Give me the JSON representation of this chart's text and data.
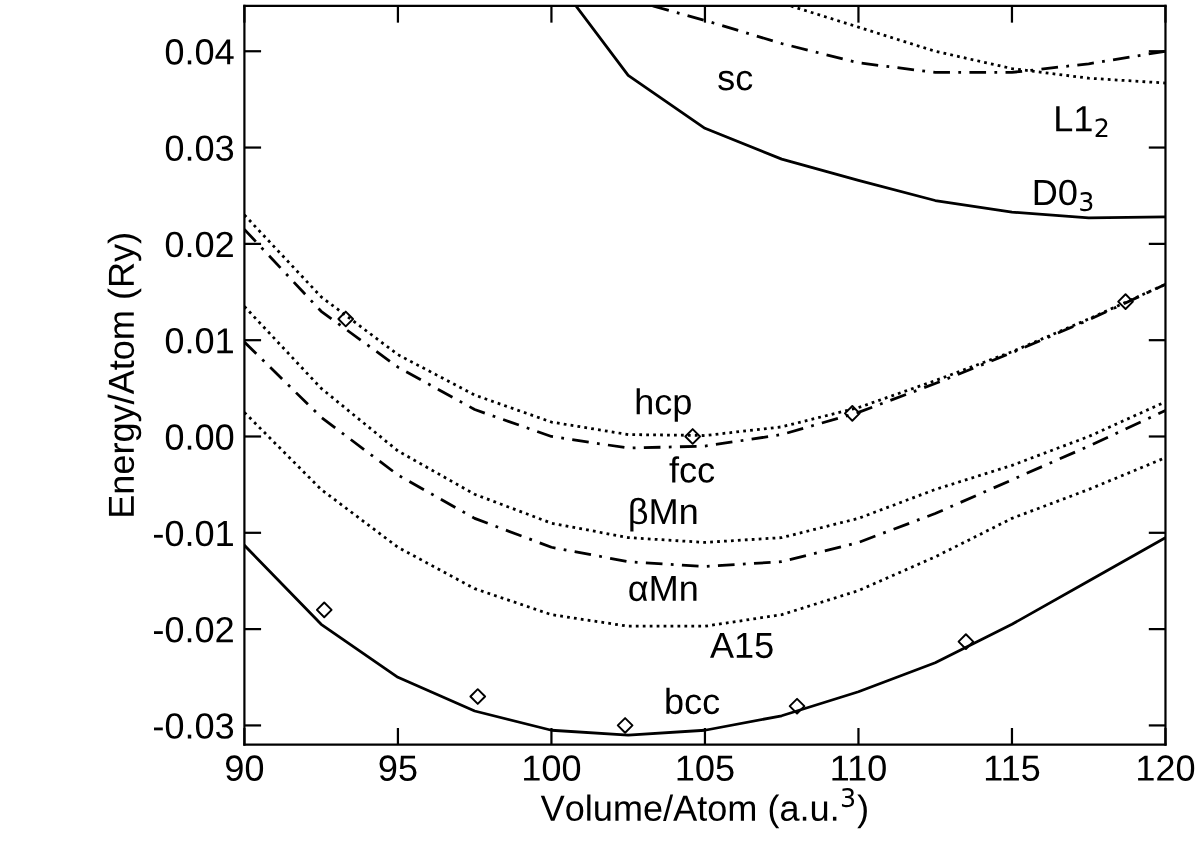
{
  "chart_data": {
    "type": "line",
    "xlabel": "Volume/Atom (a.u.$^{3}$)",
    "ylabel": "Energy/Atom (Ry)",
    "xlim": [
      90,
      120
    ],
    "ylim": [
      -0.032,
      0.0447
    ],
    "xticks": [
      90,
      95,
      100,
      105,
      110,
      115,
      120
    ],
    "yticks": [
      -0.03,
      -0.02,
      -0.01,
      {
        "value": 0,
        "label": "0.00"
      },
      0.01,
      0.02,
      0.03,
      0.04
    ],
    "grid": false,
    "series": [
      {
        "name": "hcp",
        "color": "#000000",
        "line_style": "dotted",
        "marker": "none",
        "x": [
          90,
          92.5,
          95,
          97.5,
          100,
          102.5,
          105,
          107.5,
          110,
          112.5,
          115,
          117.5,
          120
        ],
        "values": [
          0.023,
          0.0145,
          0.0085,
          0.0043,
          0.0015,
          0.0002,
          0.0001,
          0.001,
          0.003,
          0.0058,
          0.0088,
          0.0122,
          0.0158
        ]
      },
      {
        "name": "fcc",
        "color": "#000000",
        "line_style": "dashed",
        "marker": "none",
        "x": [
          90,
          92.5,
          95,
          97.5,
          100,
          102.5,
          105,
          107.5,
          110,
          112.5,
          115,
          117.5,
          120
        ],
        "values": [
          0.0215,
          0.013,
          0.0072,
          0.0028,
          0.0,
          -0.0012,
          -0.001,
          0.0002,
          0.0025,
          0.0055,
          0.0087,
          0.0121,
          0.0158
        ]
      },
      {
        "name": "βMn",
        "color": "#000000",
        "line_style": "dotted",
        "marker": "none",
        "x": [
          90,
          92.5,
          95,
          97.5,
          100,
          102.5,
          105,
          107.5,
          110,
          112.5,
          115,
          117.5,
          120
        ],
        "values": [
          0.0135,
          0.005,
          -0.0015,
          -0.006,
          -0.009,
          -0.0105,
          -0.011,
          -0.0105,
          -0.0085,
          -0.0055,
          -0.003,
          0.0,
          0.0036
        ]
      },
      {
        "name": "αMn",
        "color": "#000000",
        "line_style": "dashed",
        "marker": "none",
        "x": [
          90,
          92.5,
          95,
          97.5,
          100,
          102.5,
          105,
          107.5,
          110,
          112.5,
          115,
          117.5,
          120
        ],
        "values": [
          0.0098,
          0.002,
          -0.004,
          -0.0085,
          -0.0115,
          -0.013,
          -0.0135,
          -0.013,
          -0.011,
          -0.008,
          -0.0045,
          -0.001,
          0.0027
        ]
      },
      {
        "name": "A15",
        "color": "#000000",
        "line_style": "dotted",
        "marker": "none",
        "x": [
          90,
          92.5,
          95,
          97.5,
          100,
          102.5,
          105,
          107.5,
          110,
          112.5,
          115,
          117.5,
          120
        ],
        "values": [
          0.0025,
          -0.0055,
          -0.0115,
          -0.0158,
          -0.0185,
          -0.0197,
          -0.0197,
          -0.0185,
          -0.016,
          -0.0125,
          -0.0085,
          -0.0055,
          -0.0022
        ]
      },
      {
        "name": "bcc",
        "color": "#000000",
        "line_style": "solid",
        "marker": "none",
        "x": [
          90,
          92.5,
          95,
          97.5,
          100,
          102.5,
          105,
          107.5,
          110,
          112.5,
          115,
          117.5,
          120
        ],
        "values": [
          -0.0113,
          -0.0195,
          -0.025,
          -0.0285,
          -0.0305,
          -0.031,
          -0.0305,
          -0.029,
          -0.0265,
          -0.0235,
          -0.0195,
          -0.015,
          -0.0105
        ]
      },
      {
        "name": "D0$_{3}$",
        "color": "#000000",
        "line_style": "solid",
        "marker": "none",
        "x": [
          100.8,
          102.5,
          105,
          107.5,
          110,
          112.5,
          115,
          117.5,
          120
        ],
        "values": [
          0.0447,
          0.0375,
          0.032,
          0.0288,
          0.0266,
          0.0245,
          0.0233,
          0.0227,
          0.0228
        ]
      },
      {
        "name": "sc",
        "color": "#000000",
        "line_style": "dashed",
        "marker": "none",
        "x": [
          103.3,
          105,
          107.5,
          110,
          112.5,
          115,
          117.5,
          120
        ],
        "values": [
          0.0447,
          0.0432,
          0.0408,
          0.0388,
          0.0378,
          0.0378,
          0.0387,
          0.04
        ]
      },
      {
        "name": "L1$_{2}$",
        "color": "#000000",
        "line_style": "dotted",
        "marker": "none",
        "x": [
          107.8,
          110,
          112.5,
          115,
          117.5,
          120
        ],
        "values": [
          0.0447,
          0.0425,
          0.04,
          0.0382,
          0.0372,
          0.0367
        ]
      },
      {
        "type": "scatter",
        "color": "#000000",
        "marker": "diamond",
        "x": [
          92.6,
          97.6,
          102.4,
          108,
          113.5
        ],
        "values": [
          -0.018,
          -0.027,
          -0.03,
          -0.028,
          -0.0213
        ]
      },
      {
        "type": "scatter",
        "color": "#000000",
        "marker": "diamond",
        "x": [
          93.3,
          104.6,
          109.8,
          118.7
        ],
        "values": [
          0.0122,
          0.0,
          0.0024,
          0.014
        ]
      }
    ]
  }
}
